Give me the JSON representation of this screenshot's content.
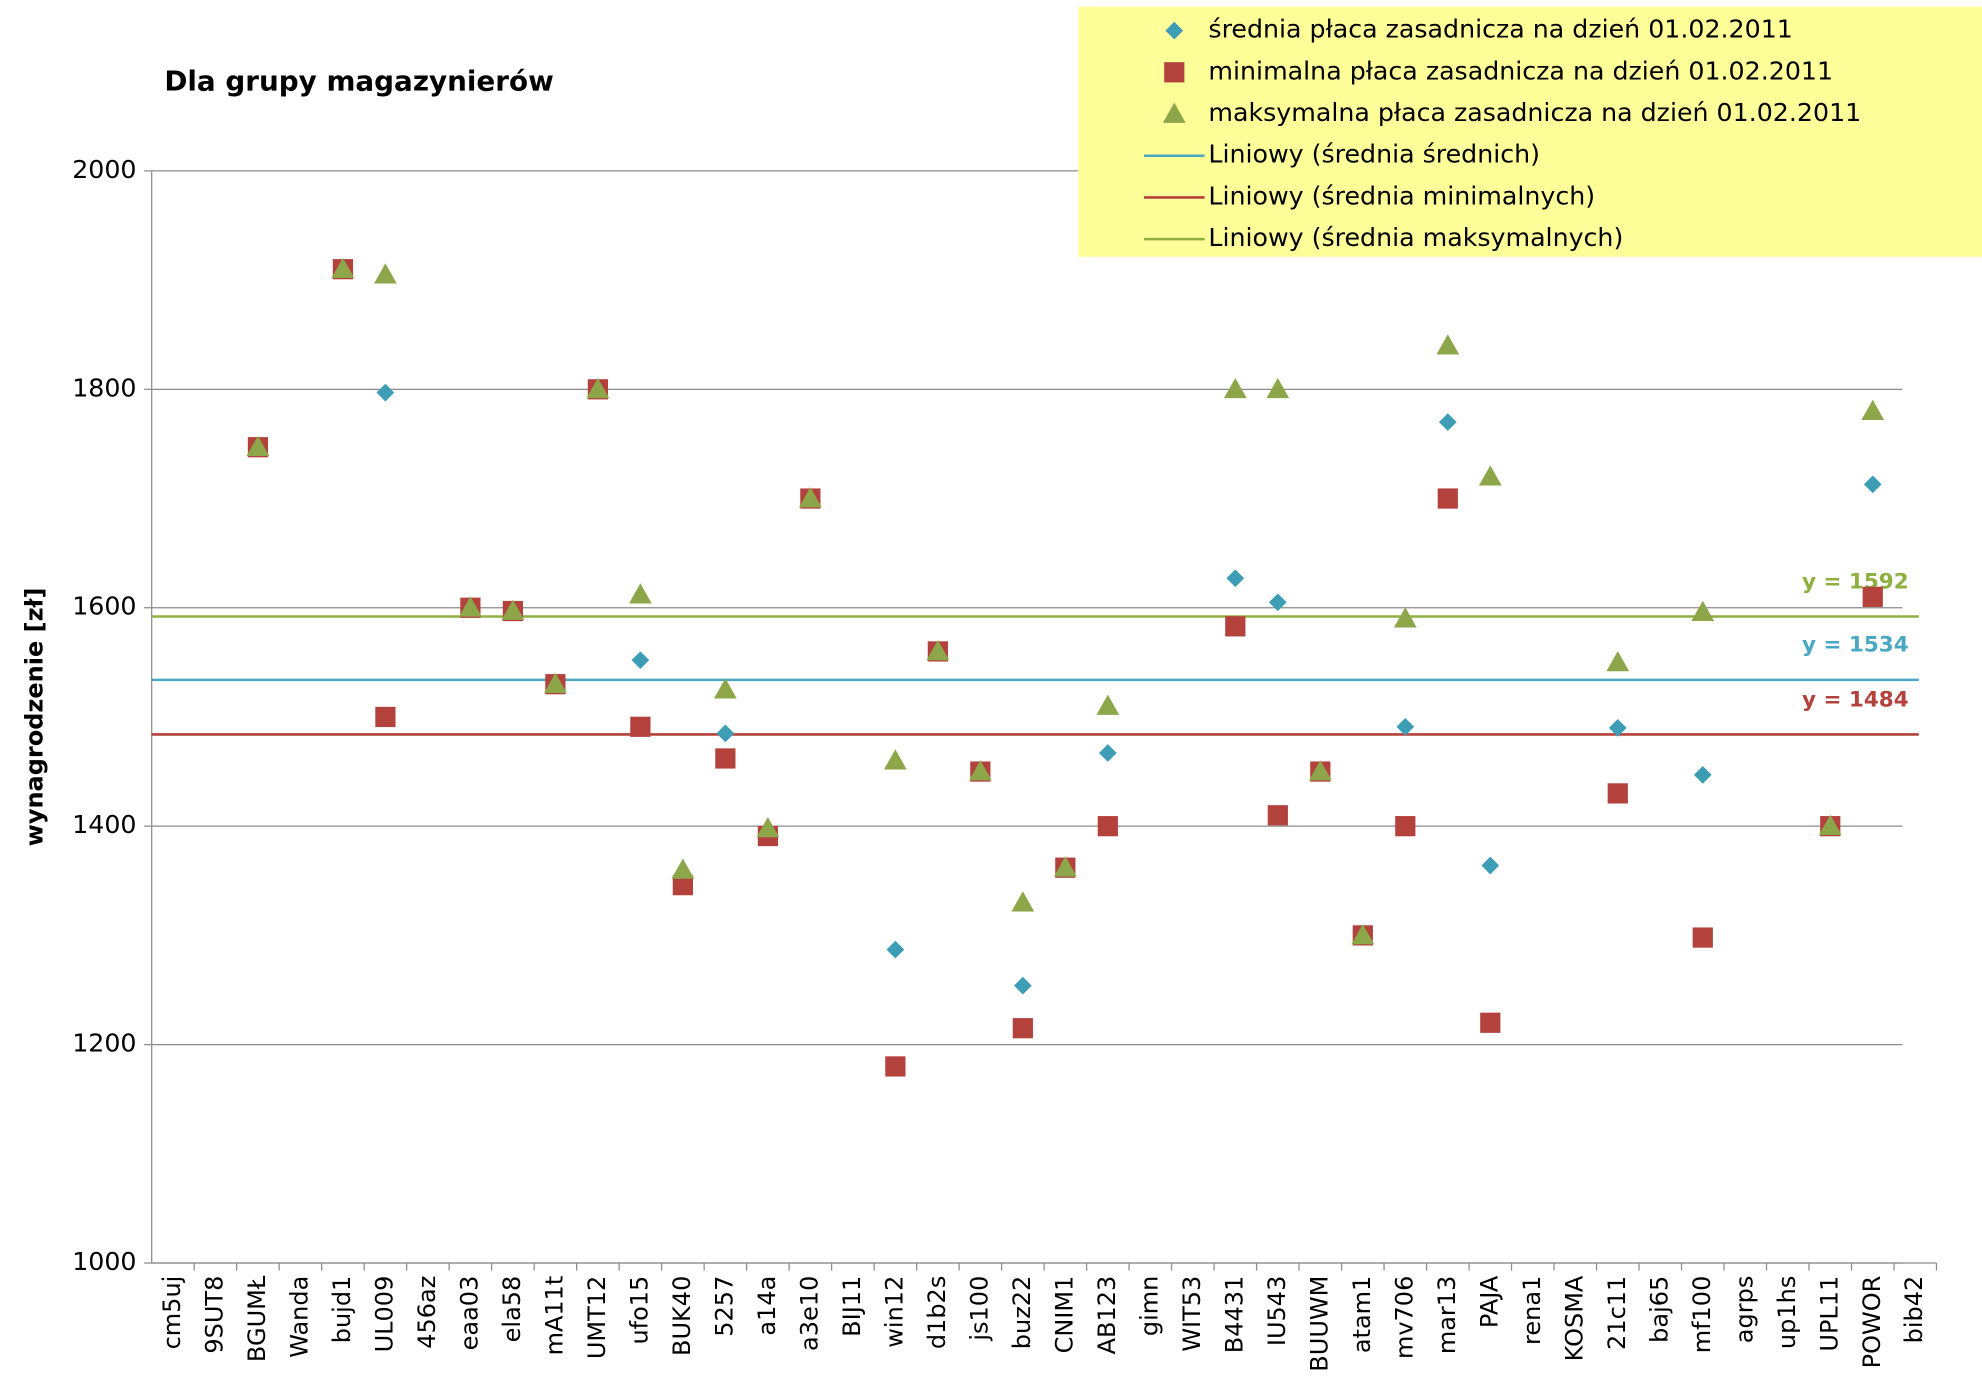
{
  "chart_data": {
    "type": "scatter",
    "title": "Dla grupy magazynierów",
    "ylabel": "wynagrodzenie [zł]",
    "categories": [
      "cm5uj",
      "9SUT8",
      "BGUMŁ",
      "Wanda",
      "bujd1",
      "UL009",
      "456az",
      "eaa03",
      "ela58",
      "mA11t",
      "UMT12",
      "ufo15",
      "BUK40",
      "5257",
      "a14a",
      "a3e10",
      "BIJ11",
      "win12",
      "d1b2s",
      "js100",
      "buz22",
      "CNIM1",
      "AB123",
      "gimn",
      "WIT53",
      "B4431",
      "IU543",
      "BUUWM",
      "atam1",
      "mv706",
      "mar13",
      "PAJA",
      "rena1",
      "KOSMA",
      "21c11",
      "baj65",
      "mf100",
      "agrps",
      "up1hs",
      "UPL11",
      "POWOR",
      "bib42"
    ],
    "series": [
      {
        "name": "średnia płaca zasadnicza na dzień 01.02.2011",
        "color": "#3d9db5",
        "marker": "diamond",
        "values": [
          null,
          null,
          1747,
          null,
          1910,
          1797,
          null,
          1600,
          1597,
          1530,
          1800,
          1552,
          1350,
          1485,
          1395,
          1700,
          null,
          1287,
          1560,
          1450,
          1254,
          1362,
          1467,
          null,
          null,
          1627,
          1605,
          1450,
          1300,
          1491,
          1770,
          1364,
          null,
          null,
          1490,
          null,
          1447,
          null,
          null,
          1400,
          1713,
          null
        ]
      },
      {
        "name": "minimalna płaca zasadnicza na dzień 01.02.2011",
        "color": "#b3423d",
        "marker": "square",
        "values": [
          null,
          null,
          1747,
          null,
          1910,
          1500,
          null,
          1600,
          1597,
          1530,
          1800,
          1491,
          1346,
          1462,
          1391,
          1700,
          null,
          1180,
          1560,
          1450,
          1215,
          1362,
          1400,
          null,
          null,
          1583,
          1410,
          1450,
          1300,
          1400,
          1700,
          1220,
          null,
          null,
          1430,
          null,
          1298,
          null,
          null,
          1400,
          1610,
          null
        ]
      },
      {
        "name": "maksymalna płaca zasadnicza na dzień 01.02.2011",
        "color": "#8ea64a",
        "marker": "triangle",
        "values": [
          null,
          null,
          1747,
          null,
          1910,
          1905,
          null,
          1600,
          1597,
          1530,
          1800,
          1612,
          1360,
          1525,
          1398,
          1700,
          null,
          1460,
          1560,
          1450,
          1330,
          1362,
          1510,
          null,
          null,
          1800,
          1800,
          1450,
          1300,
          1590,
          1840,
          1720,
          null,
          null,
          1550,
          null,
          1596,
          null,
          null,
          1400,
          1780,
          null
        ]
      }
    ],
    "trendlines": [
      {
        "name": "Liniowy (średnia średnich)",
        "color": "#4aa8c2",
        "value": 1534,
        "label": "y = 1534"
      },
      {
        "name": "Liniowy (średnia minimalnych)",
        "color": "#b3423d",
        "value": 1484,
        "label": "y = 1484"
      },
      {
        "name": "Liniowy (średnia maksymalnych)",
        "color": "#8fb040",
        "value": 1592,
        "label": "y = 1592"
      }
    ],
    "ylim": [
      1000,
      2000
    ],
    "yticks": [
      1000,
      1200,
      1400,
      1600,
      1800,
      2000
    ],
    "grid": true,
    "legend": "top-right",
    "legend_background": "#ffff99"
  }
}
